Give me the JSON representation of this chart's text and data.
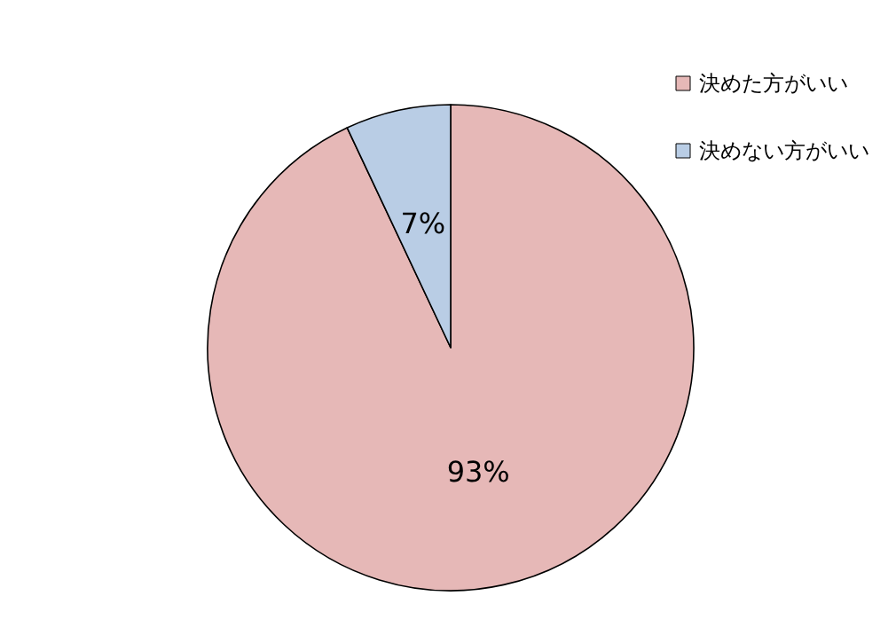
{
  "chart_data": {
    "type": "pie",
    "categories": [
      "決めた方がいい",
      "決めない方がいい"
    ],
    "values": [
      93,
      7
    ],
    "colors": [
      "#e6b8b7",
      "#b9cde5"
    ],
    "value_labels": [
      "93%",
      "7%"
    ],
    "legend": "top right"
  }
}
